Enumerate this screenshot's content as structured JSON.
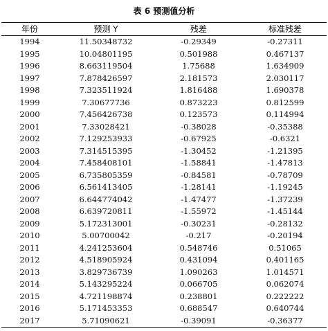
{
  "caption": "表 6  预测值分析",
  "table": {
    "headers": [
      "年份",
      "预测 Y",
      "残差",
      "标准残差"
    ],
    "rows": [
      {
        "year": "1994",
        "pred": "11.50348732",
        "resid": "-0.29349",
        "std": "-0.27311"
      },
      {
        "year": "1995",
        "pred": "10.04801195",
        "resid": "0.501988",
        "std": "0.467137"
      },
      {
        "year": "1996",
        "pred": "8.663119504",
        "resid": "1.75688",
        "std": "1.634909"
      },
      {
        "year": "1997",
        "pred": "7.878426597",
        "resid": "2.181573",
        "std": "2.030117"
      },
      {
        "year": "1998",
        "pred": "7.323511924",
        "resid": "1.816488",
        "std": "1.690378"
      },
      {
        "year": "1999",
        "pred": "7.30677736",
        "resid": "0.873223",
        "std": "0.812599"
      },
      {
        "year": "2000",
        "pred": "7.456426738",
        "resid": "0.123573",
        "std": "0.114994"
      },
      {
        "year": "2001",
        "pred": "7.33028421",
        "resid": "-0.38028",
        "std": "-0.35388"
      },
      {
        "year": "2002",
        "pred": "7.129253933",
        "resid": "-0.67925",
        "std": "-0.6321"
      },
      {
        "year": "2003",
        "pred": "7.314515395",
        "resid": "-1.30452",
        "std": "-1.21395"
      },
      {
        "year": "2004",
        "pred": "7.458408101",
        "resid": "-1.58841",
        "std": "-1.47813"
      },
      {
        "year": "2005",
        "pred": "6.735805359",
        "resid": "-0.84581",
        "std": "-0.78709"
      },
      {
        "year": "2006",
        "pred": "6.561413405",
        "resid": "-1.28141",
        "std": "-1.19245"
      },
      {
        "year": "2007",
        "pred": "6.644774042",
        "resid": "-1.47477",
        "std": "-1.37239"
      },
      {
        "year": "2008",
        "pred": "6.639720811",
        "resid": "-1.55972",
        "std": "-1.45144"
      },
      {
        "year": "2009",
        "pred": "5.172313001",
        "resid": "-0.30231",
        "std": "-0.28132"
      },
      {
        "year": "2010",
        "pred": "5.00700042",
        "resid": "-0.217",
        "std": "-0.20194"
      },
      {
        "year": "2011",
        "pred": "4.241253604",
        "resid": "0.548746",
        "std": "0.51065"
      },
      {
        "year": "2012",
        "pred": "4.518905924",
        "resid": "0.431094",
        "std": "0.401165"
      },
      {
        "year": "2013",
        "pred": "3.829736739",
        "resid": "1.090263",
        "std": "1.014571"
      },
      {
        "year": "2014",
        "pred": "5.143295224",
        "resid": "0.066705",
        "std": "0.062074"
      },
      {
        "year": "2015",
        "pred": "4.721198874",
        "resid": "0.238801",
        "std": "0.222222"
      },
      {
        "year": "2016",
        "pred": "5.171453353",
        "resid": "0.688547",
        "std": "0.640744"
      },
      {
        "year": "2017",
        "pred": "5.71090621",
        "resid": "-0.39091",
        "std": "-0.36377"
      }
    ]
  }
}
